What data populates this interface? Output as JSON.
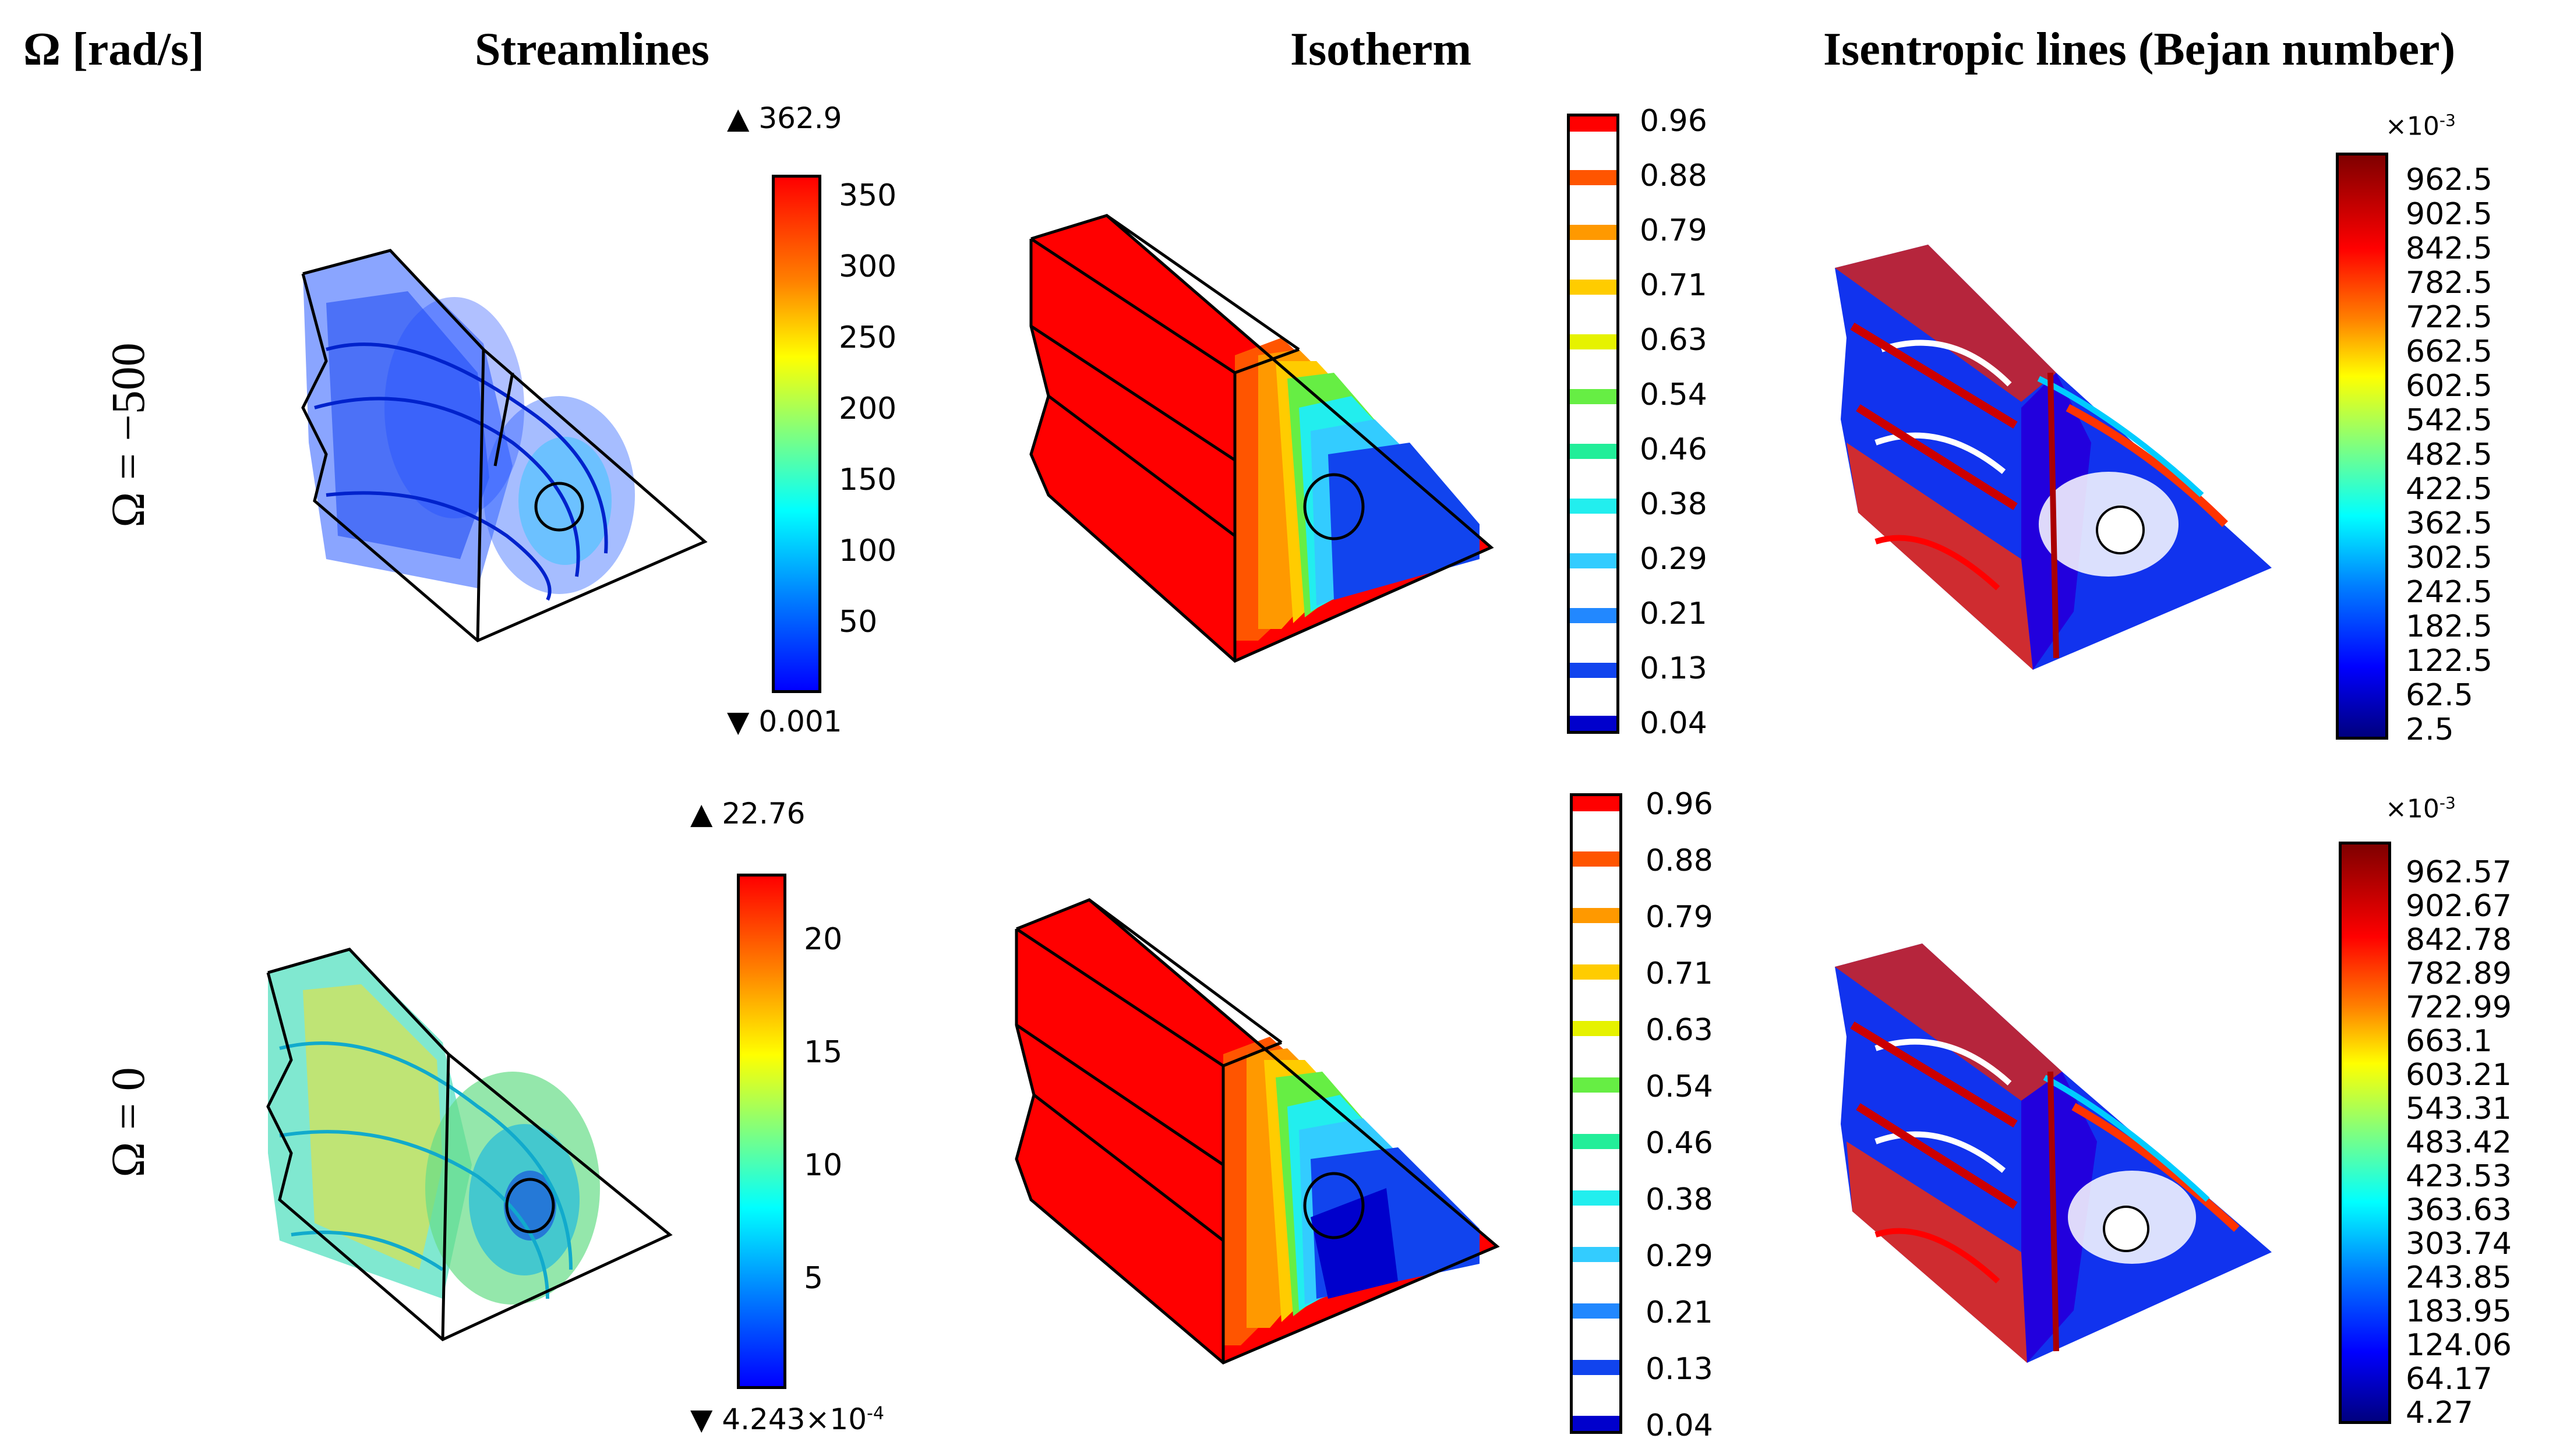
{
  "headers": {
    "omega": "Ω [rad/s]",
    "streamlines": "Streamlines",
    "isotherm": "Isotherm",
    "isentropic": "Isentropic lines (Bejan number)"
  },
  "rows": [
    {
      "label": "Ω = −500",
      "streamlines": {
        "max": "▲ 362.9",
        "min": "▼ 0.001",
        "ticks": [
          "350",
          "300",
          "250",
          "200",
          "150",
          "100",
          "50"
        ]
      },
      "isotherm": {
        "ticks": [
          "0.96",
          "0.88",
          "0.79",
          "0.71",
          "0.63",
          "0.54",
          "0.46",
          "0.38",
          "0.29",
          "0.21",
          "0.13",
          "0.04"
        ]
      },
      "bejan": {
        "exponent": "×10",
        "exponent_power": "-3",
        "ticks": [
          "962.5",
          "902.5",
          "842.5",
          "782.5",
          "722.5",
          "662.5",
          "602.5",
          "542.5",
          "482.5",
          "422.5",
          "362.5",
          "302.5",
          "242.5",
          "182.5",
          "122.5",
          "62.5",
          "2.5"
        ]
      }
    },
    {
      "label": "Ω = 0",
      "streamlines": {
        "max": "▲ 22.76",
        "min": "▼ 4.243×10",
        "min_power": "-4",
        "ticks": [
          "20",
          "15",
          "10",
          "5"
        ]
      },
      "isotherm": {
        "ticks": [
          "0.96",
          "0.88",
          "0.79",
          "0.71",
          "0.63",
          "0.54",
          "0.46",
          "0.38",
          "0.29",
          "0.21",
          "0.13",
          "0.04"
        ]
      },
      "bejan": {
        "exponent": "×10",
        "exponent_power": "-3",
        "ticks": [
          "962.57",
          "902.67",
          "842.78",
          "782.89",
          "722.99",
          "663.1",
          "603.21",
          "543.31",
          "483.42",
          "423.53",
          "363.63",
          "303.74",
          "243.85",
          "183.95",
          "124.06",
          "64.17",
          "4.27"
        ]
      }
    }
  ],
  "colors": {
    "jet": [
      "#00007f",
      "#0000ff",
      "#007fff",
      "#00ffff",
      "#7fff7f",
      "#ffff00",
      "#ff7f00",
      "#ff0000",
      "#7f0000"
    ],
    "isotherm_bands": [
      "#ff0000",
      "#ff5500",
      "#ff9900",
      "#ffcc00",
      "#e6f200",
      "#66ee44",
      "#22ee99",
      "#22eeee",
      "#33ccff",
      "#2288ff",
      "#1144ee",
      "#0000cc"
    ]
  }
}
